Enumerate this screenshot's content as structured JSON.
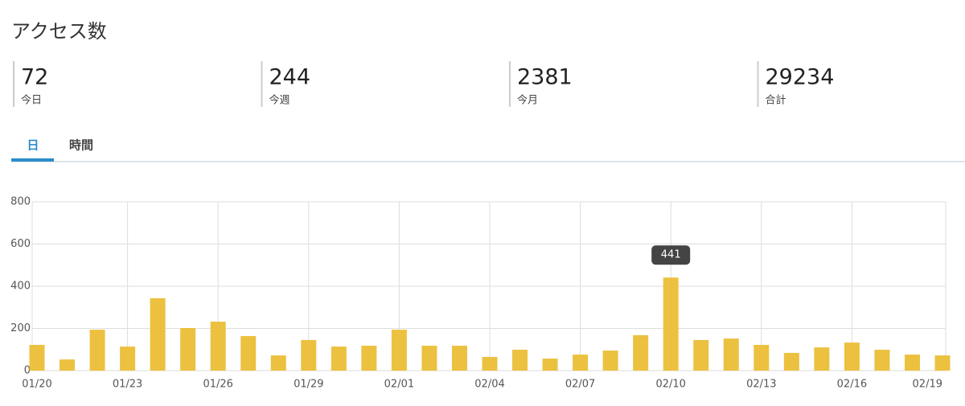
{
  "header": {
    "title": "アクセス数"
  },
  "stats": [
    {
      "value": 72,
      "label": "今日"
    },
    {
      "value": 244,
      "label": "今週"
    },
    {
      "value": 2381,
      "label": "今月"
    },
    {
      "value": 29234,
      "label": "合計"
    }
  ],
  "tabs": [
    "日",
    "時間"
  ],
  "chart_data": {
    "type": "bar",
    "categories": [
      "01/20",
      null,
      null,
      "01/23",
      null,
      null,
      "01/26",
      null,
      null,
      "01/29",
      null,
      null,
      "02/01",
      null,
      null,
      "02/04",
      null,
      null,
      "02/07",
      null,
      null,
      "02/10",
      null,
      null,
      "02/13",
      null,
      null,
      "02/16",
      null,
      null,
      "02/19"
    ],
    "values": [
      122,
      53,
      194,
      114,
      343,
      202,
      232,
      164,
      72,
      145,
      114,
      118,
      194,
      118,
      118,
      65,
      99,
      57,
      76,
      95,
      168,
      441,
      145,
      152,
      122,
      84,
      110,
      133,
      99,
      76,
      72
    ],
    "color": "#ecc140",
    "ylim": [
      0,
      800
    ],
    "yticks": [
      0,
      200,
      400,
      600,
      800
    ],
    "grid": true,
    "tooltip_index": 21
  }
}
